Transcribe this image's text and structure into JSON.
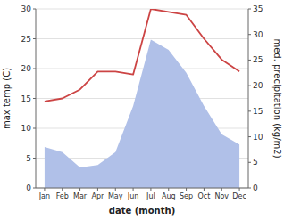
{
  "chart_data": {
    "type": "line",
    "categories": [
      "Jan",
      "Feb",
      "Mar",
      "Apr",
      "May",
      "Jun",
      "Jul",
      "Aug",
      "Sep",
      "Oct",
      "Nov",
      "Dec"
    ],
    "series": [
      {
        "type": "area",
        "axis": "y2",
        "color": "#b0c0e8",
        "values": [
          8.0,
          7.0,
          4.0,
          4.5,
          7.0,
          16.0,
          29.0,
          27.0,
          22.5,
          16.0,
          10.5,
          8.5
        ]
      },
      {
        "type": "line",
        "color": "#cc4444",
        "values": [
          14.5,
          15.0,
          16.5,
          19.5,
          19.5,
          19.0,
          30.0,
          29.5,
          29.0,
          25.0,
          21.5,
          19.5
        ]
      }
    ],
    "x_label": "date (month)",
    "y_label": "max temp (C)",
    "y2_label": "med. precipitation (kg/m2)",
    "ylim": [
      0,
      30
    ],
    "yticks": [
      0,
      5,
      10,
      15,
      20,
      25,
      30
    ],
    "y2lim": [
      0,
      35
    ],
    "y2ticks": [
      0,
      5,
      10,
      15,
      20,
      25,
      30,
      35
    ],
    "grid": true
  }
}
